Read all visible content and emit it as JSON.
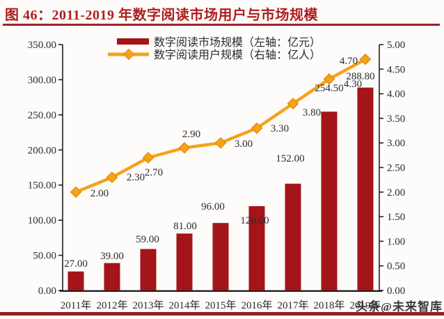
{
  "title": "图 46：2011-2019 年数字阅读市场用户与市场规模",
  "watermark": "头条@未来智库",
  "colors": {
    "title_red": "#AE1E1E",
    "rule_red": "#9E2224",
    "bottom_rule_red": "#93211F",
    "bar_red": "#A31518",
    "line_orange": "#F7A21B",
    "marker_border_orange": "#E08A00",
    "axis_dark": "#1F1F1F",
    "label_text": "#2B2B2B",
    "watermark_gray": "#3C3C3C"
  },
  "chart_data": {
    "type": "bar",
    "subtype": "bar-line-combo",
    "title": "图 46：2011-2019 年数字阅读市场用户与市场规模",
    "categories": [
      "2011年",
      "2012年",
      "2013年",
      "2014年",
      "2015年",
      "2016年",
      "2017年",
      "2018年",
      "2019年"
    ],
    "series": [
      {
        "name": "数字阅读市场规模（左轴：亿元）",
        "kind": "bar",
        "axis": "left",
        "color": "#A31518",
        "values": [
          27.0,
          39.0,
          59.0,
          81.0,
          96.0,
          120.0,
          152.0,
          254.5,
          288.8
        ],
        "data_labels": [
          "27.00",
          "39.00",
          "59.00",
          "81.00",
          "96.00",
          "120.00",
          "152.00",
          "254.50",
          "288.80"
        ]
      },
      {
        "name": "数字阅读用户规模（右轴：亿人）",
        "kind": "line",
        "axis": "right",
        "color": "#F7A21B",
        "marker": "diamond",
        "values": [
          2.0,
          2.3,
          2.7,
          2.9,
          3.0,
          3.3,
          3.8,
          4.3,
          4.7
        ],
        "data_labels": [
          "2.00",
          "2.30",
          "2.70",
          "2.90",
          "3.00",
          "3.30",
          "3.80",
          "4.30",
          "4.70"
        ]
      }
    ],
    "left_axis": {
      "min": 0,
      "max": 350,
      "ticks": [
        "0.00",
        "50.00",
        "100.00",
        "150.00",
        "200.00",
        "250.00",
        "300.00",
        "350.00"
      ]
    },
    "right_axis": {
      "min": 0,
      "max": 5,
      "ticks": [
        "0.00",
        "0.50",
        "1.00",
        "1.50",
        "2.00",
        "2.50",
        "3.00",
        "3.50",
        "4.00",
        "4.50",
        "5.00"
      ]
    },
    "legend_position": "top-center",
    "grid": false
  }
}
